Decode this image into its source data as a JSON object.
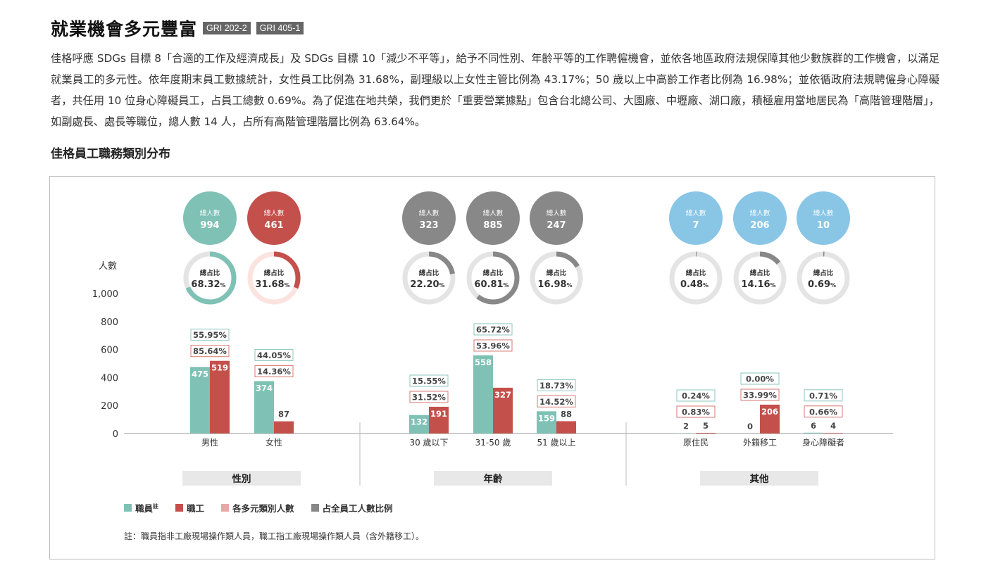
{
  "header": {
    "title": "就業機會多元豐富",
    "tags": [
      "GRI 202-2",
      "GRI 405-1"
    ]
  },
  "intro": "佳格呼應 SDGs 目標 8「合適的工作及經濟成長」及 SDGs 目標 10「減少不平等」，給予不同性別、年齡平等的工作聘僱機會，並依各地區政府法規保障其他少數族群的工作機會，以滿足就業員工的多元性。依年度期末員工數據統計，女性員工比例為 31.68%，副理級以上女性主管比例為 43.17%；50 歲以上中高齡工作者比例為 16.98%；並依循政府法規聘僱身心障礙者，共任用 10 位身心障礙員工，占員工總數 0.69%。為了促進在地共榮，我們更於「重要營業據點」包含台北總公司、大園廠、中壢廠、湖口廠，積極雇用當地居民為「高階管理階層」，如副處長、處長等職位，總人數 14 人，占所有高階管理階層比例為 63.64%。",
  "section_title": "佳格員工職務類別分布",
  "colors": {
    "staff": "#7fc1b5",
    "worker": "#c4504b",
    "gray": "#888888",
    "blue": "#89c6e6",
    "track": "#e4e4e4",
    "female_track": "#fbe3df",
    "label_bg": "#e8e8e8"
  },
  "chart_data": {
    "type": "bar",
    "ylabel": "人數",
    "ylim": [
      0,
      1000
    ],
    "yticks": [
      "0",
      "200",
      "400",
      "600",
      "800",
      "1,000"
    ],
    "total_label": "總人數",
    "ratio_label": "總占比",
    "groups": [
      {
        "name": "性別",
        "categories": [
          {
            "label": "男性",
            "total": "994",
            "ratio": "68.32",
            "ratio_value": 68.32,
            "circle_color": "#7fc1b5",
            "ring_color": "#7fc1b5",
            "track_color": "#e4e4e4",
            "staff": 475,
            "worker": 519,
            "staff_pct": "55.95%",
            "worker_pct": "85.64%"
          },
          {
            "label": "女性",
            "total": "461",
            "ratio": "31.68",
            "ratio_value": 31.68,
            "circle_color": "#c4504b",
            "ring_color": "#c4504b",
            "track_color": "#fbe3df",
            "staff": 374,
            "worker": 87,
            "staff_pct": "44.05%",
            "worker_pct": "14.36%"
          }
        ]
      },
      {
        "name": "年齡",
        "categories": [
          {
            "label": "30 歲以下",
            "total": "323",
            "ratio": "22.20",
            "ratio_value": 22.2,
            "circle_color": "#888888",
            "ring_color": "#888888",
            "track_color": "#e4e4e4",
            "staff": 132,
            "worker": 191,
            "staff_pct": "15.55%",
            "worker_pct": "31.52%"
          },
          {
            "label": "31-50 歲",
            "total": "885",
            "ratio": "60.81",
            "ratio_value": 60.81,
            "circle_color": "#888888",
            "ring_color": "#888888",
            "track_color": "#e4e4e4",
            "staff": 558,
            "worker": 327,
            "staff_pct": "65.72%",
            "worker_pct": "53.96%"
          },
          {
            "label": "51 歲以上",
            "total": "247",
            "ratio": "16.98",
            "ratio_value": 16.98,
            "circle_color": "#888888",
            "ring_color": "#888888",
            "track_color": "#e4e4e4",
            "staff": 159,
            "worker": 88,
            "staff_pct": "18.73%",
            "worker_pct": "14.52%"
          }
        ]
      },
      {
        "name": "其他",
        "categories": [
          {
            "label": "原住民",
            "total": "7",
            "ratio": "0.48",
            "ratio_value": 0.48,
            "circle_color": "#89c6e6",
            "ring_color": "#888888",
            "track_color": "#e4e4e4",
            "staff": 2,
            "worker": 5,
            "staff_pct": "0.24%",
            "worker_pct": "0.83%"
          },
          {
            "label": "外籍移工",
            "total": "206",
            "ratio": "14.16",
            "ratio_value": 14.16,
            "circle_color": "#89c6e6",
            "ring_color": "#888888",
            "track_color": "#e4e4e4",
            "staff": 0,
            "worker": 206,
            "staff_pct": "0.00%",
            "worker_pct": "33.99%"
          },
          {
            "label": "身心障礙者",
            "total": "10",
            "ratio": "0.69",
            "ratio_value": 0.69,
            "circle_color": "#89c6e6",
            "ring_color": "#888888",
            "track_color": "#e4e4e4",
            "staff": 6,
            "worker": 4,
            "staff_pct": "0.71%",
            "worker_pct": "0.66%"
          }
        ]
      }
    ],
    "legend": [
      {
        "label": "職員",
        "sup": "註",
        "color": "#7fc1b5"
      },
      {
        "label": "職工",
        "color": "#c4504b"
      },
      {
        "label": "各多元類別人數",
        "color": "#e8a8a5"
      },
      {
        "label": "占全員工人數比例",
        "color": "#888888"
      }
    ]
  },
  "note": "註：職員指非工廠現場操作類人員，職工指工廠現場操作類人員（含外籍移工）。"
}
